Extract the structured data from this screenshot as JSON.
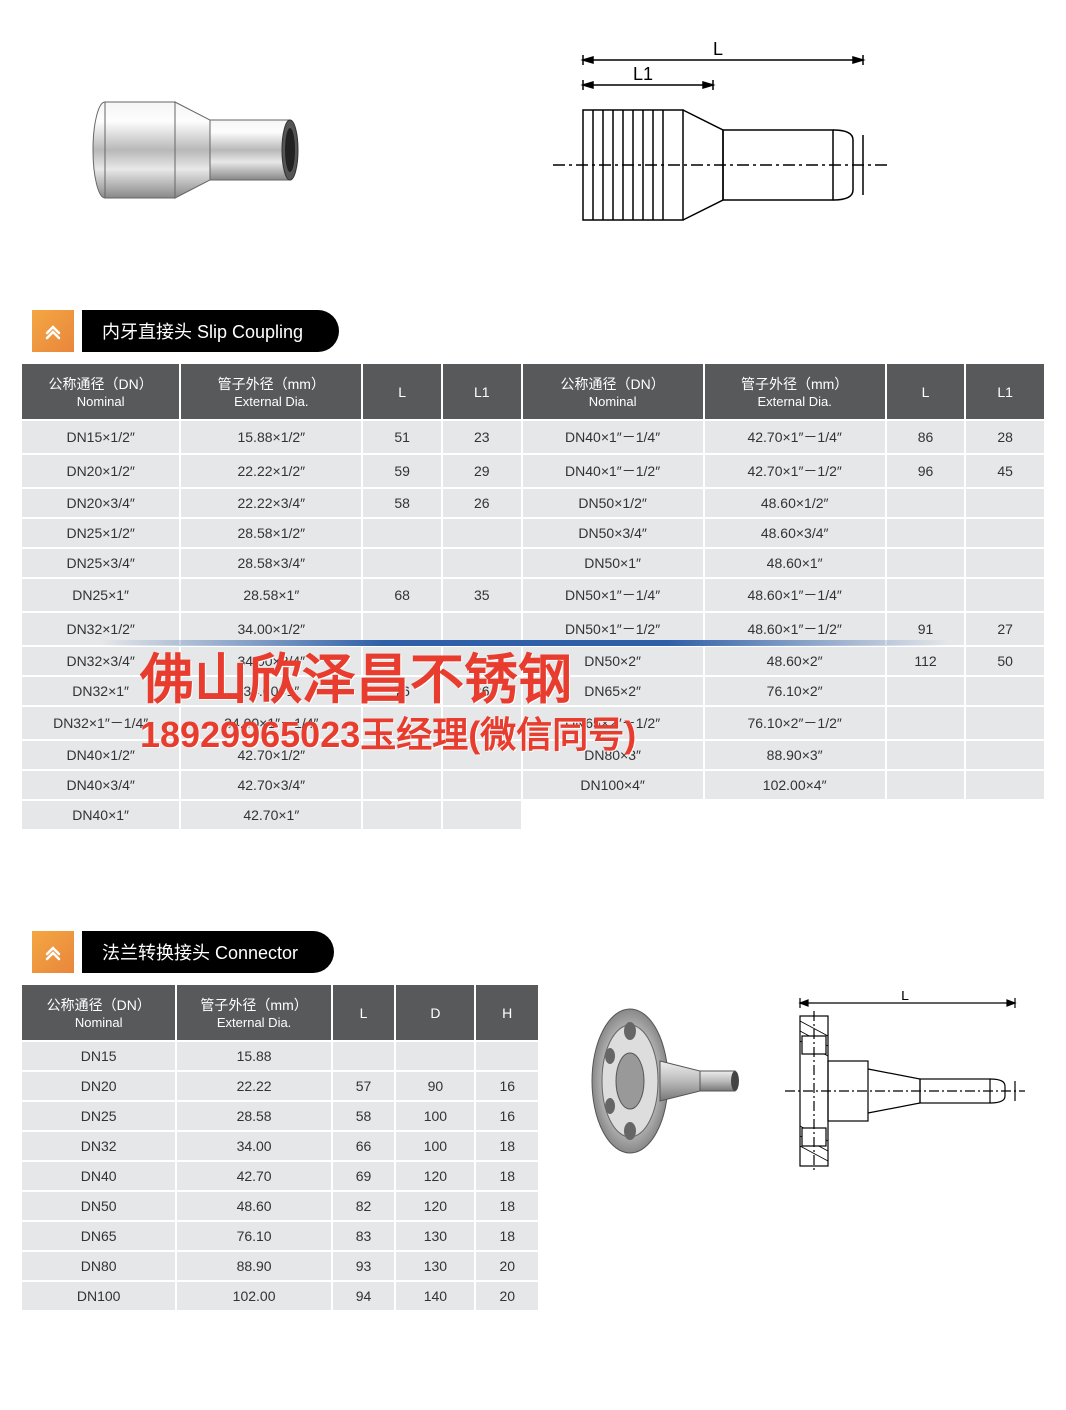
{
  "section1": {
    "title": "内牙直接头 Slip Coupling",
    "headers": {
      "nominal": "公称通径（DN）",
      "nominal_en": "Nominal",
      "external": "管子外径（mm）",
      "external_en": "External Dia.",
      "L": "L",
      "L1": "L1"
    },
    "left_rows": [
      {
        "n": "DN15×1/2″",
        "e": "15.88×1/2″",
        "L": "51",
        "L1": "23"
      },
      {
        "n": "DN20×1/2″",
        "e": "22.22×1/2″",
        "L": "59",
        "L1": "29"
      },
      {
        "n": "DN20×3/4″",
        "e": "22.22×3/4″",
        "L": "58",
        "L1": "26"
      },
      {
        "n": "DN25×1/2″",
        "e": "28.58×1/2″",
        "L": "",
        "L1": ""
      },
      {
        "n": "DN25×3/4″",
        "e": "28.58×3/4″",
        "L": "",
        "L1": ""
      },
      {
        "n": "DN25×1″",
        "e": "28.58×1″",
        "L": "68",
        "L1": "35"
      },
      {
        "n": "DN32×1/2″",
        "e": "34.00×1/2″",
        "L": "",
        "L1": ""
      },
      {
        "n": "DN32×3/4″",
        "e": "34.00×3/4″",
        "L": "",
        "L1": ""
      },
      {
        "n": "DN32×1″",
        "e": "34.00×1″",
        "L": "76",
        "L1": "26"
      },
      {
        "n": "DN32×1″－1/4″",
        "e": "34.00×1″－1/4″",
        "L": "",
        "L1": ""
      },
      {
        "n": "DN40×1/2″",
        "e": "42.70×1/2″",
        "L": "",
        "L1": ""
      },
      {
        "n": "DN40×3/4″",
        "e": "42.70×3/4″",
        "L": "",
        "L1": ""
      },
      {
        "n": "DN40×1″",
        "e": "42.70×1″",
        "L": "",
        "L1": ""
      }
    ],
    "right_rows": [
      {
        "n": "DN40×1″－1/4″",
        "e": "42.70×1″－1/4″",
        "L": "86",
        "L1": "28"
      },
      {
        "n": "DN40×1″－1/2″",
        "e": "42.70×1″－1/2″",
        "L": "96",
        "L1": "45"
      },
      {
        "n": "DN50×1/2″",
        "e": "48.60×1/2″",
        "L": "",
        "L1": ""
      },
      {
        "n": "DN50×3/4″",
        "e": "48.60×3/4″",
        "L": "",
        "L1": ""
      },
      {
        "n": "DN50×1″",
        "e": "48.60×1″",
        "L": "",
        "L1": ""
      },
      {
        "n": "DN50×1″－1/4″",
        "e": "48.60×1″－1/4″",
        "L": "",
        "L1": ""
      },
      {
        "n": "DN50×1″－1/2″",
        "e": "48.60×1″－1/2″",
        "L": "91",
        "L1": "27"
      },
      {
        "n": "DN50×2″",
        "e": "48.60×2″",
        "L": "112",
        "L1": "50"
      },
      {
        "n": "DN65×2″",
        "e": "76.10×2″",
        "L": "",
        "L1": ""
      },
      {
        "n": "DN65×2″－1/2″",
        "e": "76.10×2″－1/2″",
        "L": "",
        "L1": ""
      },
      {
        "n": "DN80×3″",
        "e": "88.90×3″",
        "L": "",
        "L1": ""
      },
      {
        "n": "DN100×4″",
        "e": "102.00×4″",
        "L": "",
        "L1": ""
      }
    ]
  },
  "section2": {
    "title": "法兰转换接头 Connector",
    "headers": {
      "nominal": "公称通径（DN）",
      "nominal_en": "Nominal",
      "external": "管子外径（mm）",
      "external_en": "External Dia.",
      "L": "L",
      "D": "D",
      "H": "H"
    },
    "rows": [
      {
        "n": "DN15",
        "e": "15.88",
        "L": "",
        "D": "",
        "H": ""
      },
      {
        "n": "DN20",
        "e": "22.22",
        "L": "57",
        "D": "90",
        "H": "16"
      },
      {
        "n": "DN25",
        "e": "28.58",
        "L": "58",
        "D": "100",
        "H": "16"
      },
      {
        "n": "DN32",
        "e": "34.00",
        "L": "66",
        "D": "100",
        "H": "18"
      },
      {
        "n": "DN40",
        "e": "42.70",
        "L": "69",
        "D": "120",
        "H": "18"
      },
      {
        "n": "DN50",
        "e": "48.60",
        "L": "82",
        "D": "120",
        "H": "18"
      },
      {
        "n": "DN65",
        "e": "76.10",
        "L": "83",
        "D": "130",
        "H": "18"
      },
      {
        "n": "DN80",
        "e": "88.90",
        "L": "93",
        "D": "130",
        "H": "20"
      },
      {
        "n": "DN100",
        "e": "102.00",
        "L": "94",
        "D": "140",
        "H": "20"
      }
    ]
  },
  "watermark": {
    "line1": "佛山欣泽昌不锈钢",
    "line2": "18929965023玉经理(微信同号)"
  },
  "drawing_labels": {
    "L": "L",
    "L1": "L1"
  },
  "colors": {
    "header_bg": "#58595b",
    "row_bg": "#e6e7e8",
    "badge_grad1": "#f4a742",
    "badge_grad2": "#e8863c",
    "watermark": "#e73c2e"
  }
}
